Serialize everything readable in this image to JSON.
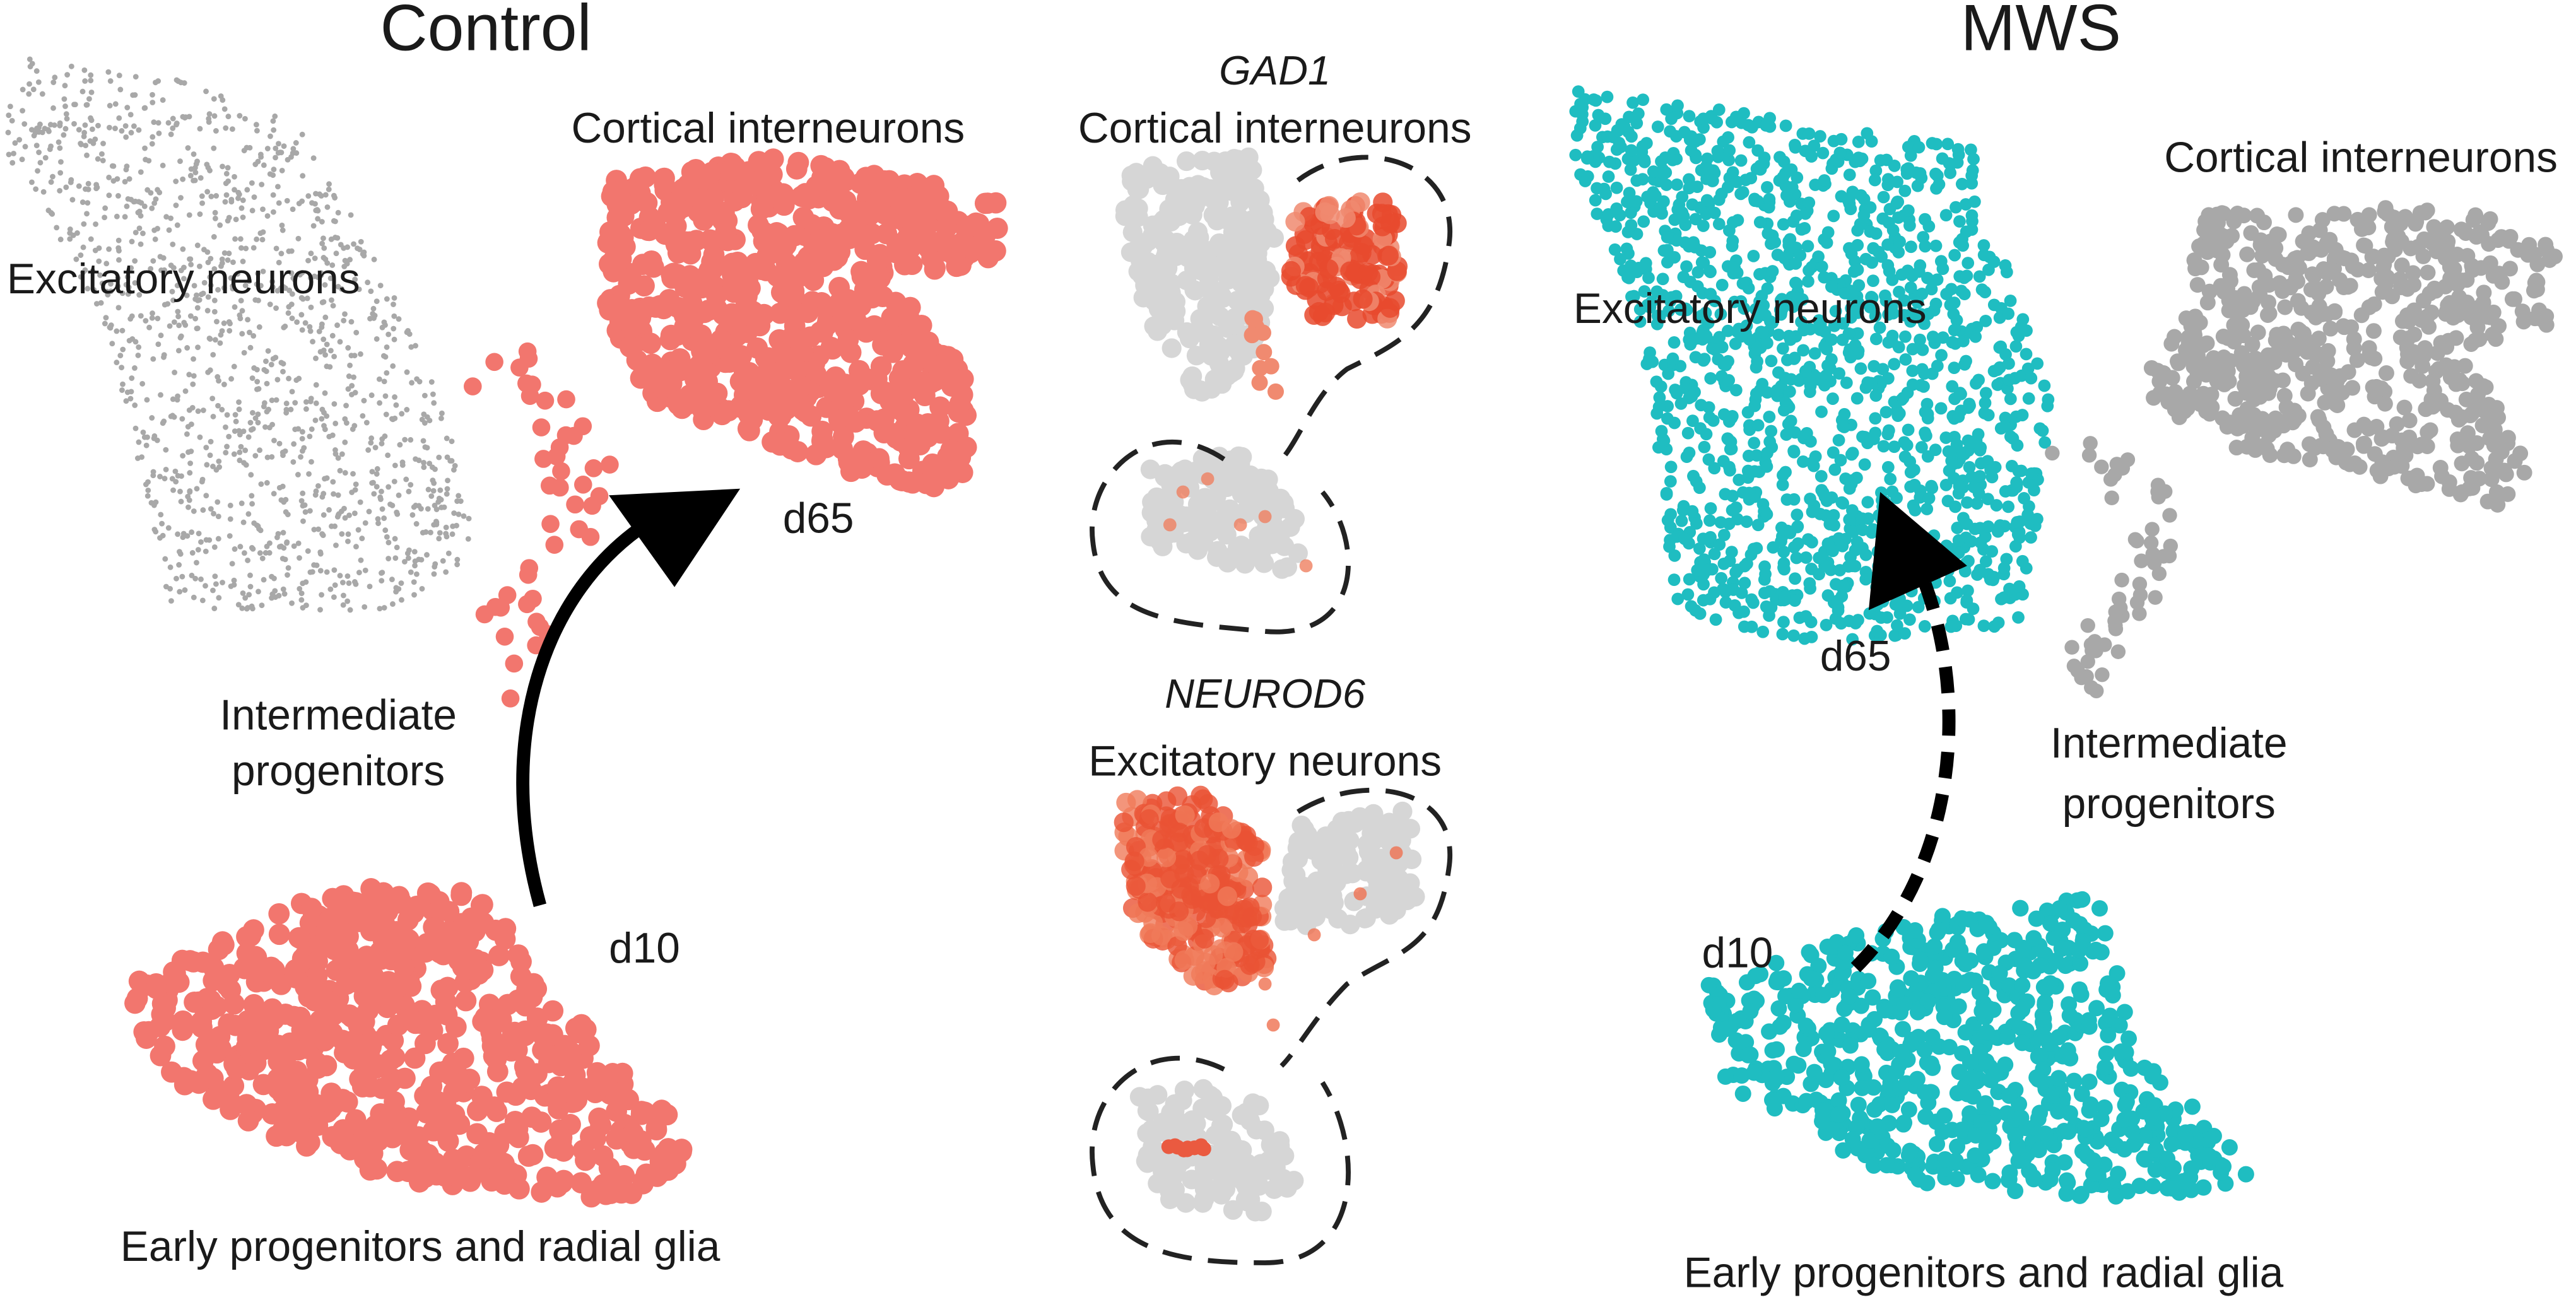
{
  "control": {
    "title": "Control",
    "labels": {
      "cortical_interneurons": "Cortical interneurons",
      "excitatory_neurons": "Excitatory neurons",
      "intermediate_progenitors": [
        "Intermediate",
        "progenitors"
      ],
      "early_progenitors": "Early progenitors and radial glia"
    },
    "timepoints": [
      "d10",
      "d65"
    ]
  },
  "markers": [
    {
      "gene": "GAD1",
      "cell_type": "Cortical interneurons"
    },
    {
      "gene": "NEUROD6",
      "cell_type": "Excitatory neurons"
    }
  ],
  "mws": {
    "title": "MWS",
    "labels": {
      "cortical_interneurons": "Cortical interneurons",
      "excitatory_neurons": "Excitatory neurons",
      "intermediate_progenitors": [
        "Intermediate",
        "progenitors"
      ],
      "early_progenitors": "Early progenitors and radial glia"
    },
    "timepoints": [
      "d10",
      "d65"
    ]
  }
}
